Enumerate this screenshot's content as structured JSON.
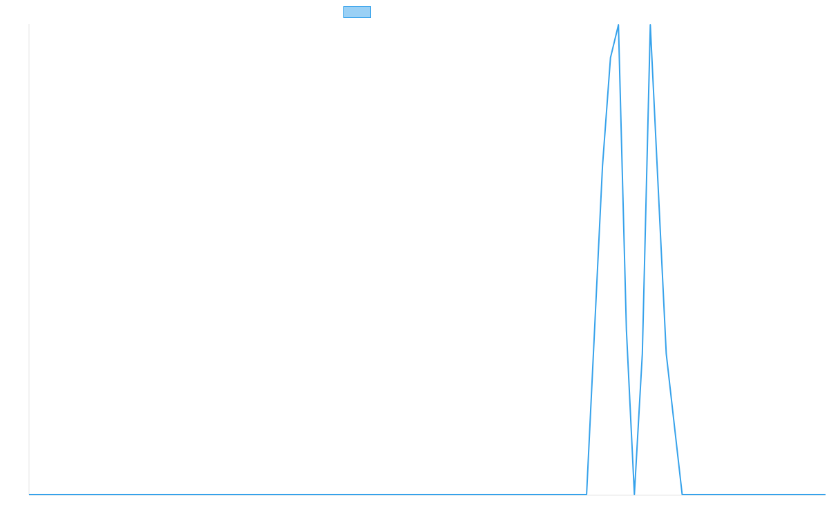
{
  "chart_data": {
    "type": "line",
    "x": [
      0,
      10,
      20,
      30,
      40,
      50,
      60,
      68,
      70,
      72,
      73,
      74,
      75,
      76,
      77,
      78,
      80,
      82,
      83,
      84,
      85,
      100
    ],
    "series": [
      {
        "name": "",
        "values": [
          0,
          0,
          0,
          0,
          0,
          0,
          0,
          0,
          0,
          0.7,
          0.93,
          1.0,
          0.35,
          0,
          0.3,
          1.0,
          0.3,
          0,
          0,
          0,
          0,
          0
        ]
      }
    ],
    "xlim": [
      0,
      100
    ],
    "ylim": [
      0,
      1
    ],
    "grid": false,
    "legend": "top-center",
    "colors": {
      "line": "#36a2eb",
      "legend_fill": "#9ad0f5",
      "axis": "#e6e6e6"
    }
  }
}
